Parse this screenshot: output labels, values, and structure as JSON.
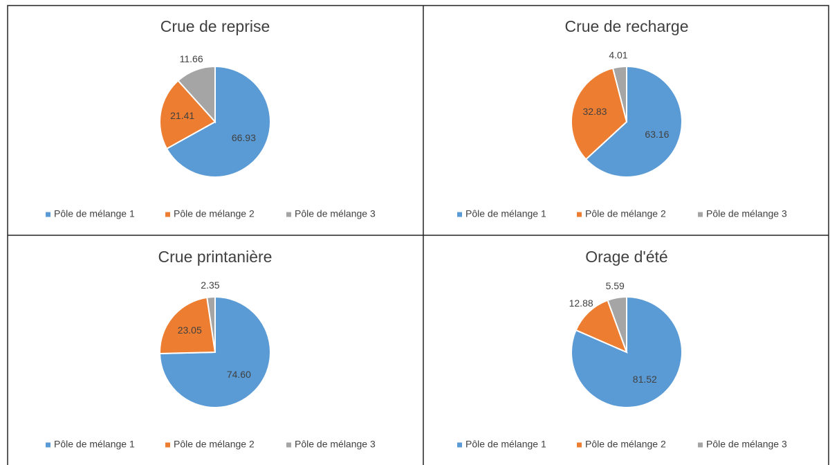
{
  "chart_data": [
    {
      "type": "pie",
      "title": "Crue de reprise",
      "categories": [
        "Pôle de mélange 1",
        "Pôle de mélange 2",
        "Pôle de mélange 3"
      ],
      "values": [
        66.93,
        21.41,
        11.66
      ],
      "value_labels": [
        "66.93",
        "21.41",
        "11.66"
      ],
      "colors": [
        "#5b9bd5",
        "#ed7d31",
        "#a5a5a5"
      ]
    },
    {
      "type": "pie",
      "title": "Crue de recharge",
      "categories": [
        "Pôle de mélange 1",
        "Pôle de mélange 2",
        "Pôle de mélange 3"
      ],
      "values": [
        63.16,
        32.83,
        4.01
      ],
      "value_labels": [
        "63.16",
        "32.83",
        "4.01"
      ],
      "colors": [
        "#5b9bd5",
        "#ed7d31",
        "#a5a5a5"
      ]
    },
    {
      "type": "pie",
      "title": "Crue printanière",
      "categories": [
        "Pôle de mélange 1",
        "Pôle de mélange 2",
        "Pôle de mélange 3"
      ],
      "values": [
        74.6,
        23.05,
        2.35
      ],
      "value_labels": [
        "74.60",
        "23.05",
        "2.35"
      ],
      "colors": [
        "#5b9bd5",
        "#ed7d31",
        "#a5a5a5"
      ]
    },
    {
      "type": "pie",
      "title": "Orage d'été",
      "categories": [
        "Pôle de mélange 1",
        "Pôle de mélange 2",
        "Pôle de mélange 3"
      ],
      "values": [
        81.52,
        12.88,
        5.59
      ],
      "value_labels": [
        "81.52",
        "12.88",
        "5.59"
      ],
      "colors": [
        "#5b9bd5",
        "#ed7d31",
        "#a5a5a5"
      ]
    }
  ]
}
